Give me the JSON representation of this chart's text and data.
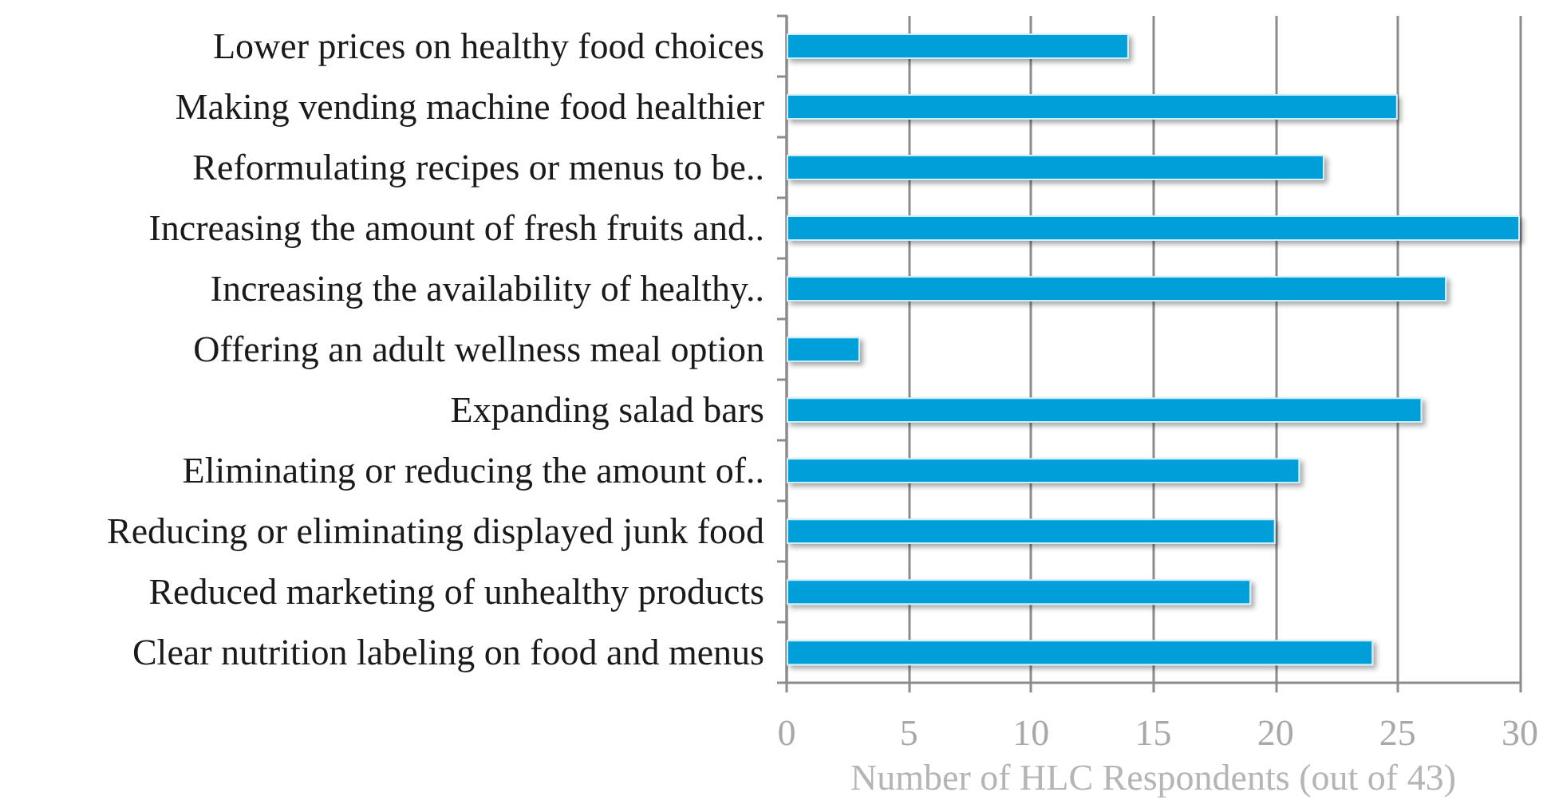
{
  "chart_data": {
    "type": "bar",
    "orientation": "horizontal",
    "categories": [
      "Lower prices on healthy food choices",
      "Making vending machine food healthier",
      "Reformulating recipes or menus to be..",
      "Increasing the amount of fresh fruits and..",
      "Increasing the availability of healthy..",
      "Offering an adult wellness meal option",
      "Expanding salad bars",
      "Eliminating or reducing the amount of..",
      "Reducing or eliminating displayed junk food",
      "Reduced marketing of unhealthy products",
      "Clear nutrition labeling on food and menus"
    ],
    "values": [
      14,
      25,
      22,
      30,
      27,
      3,
      26,
      21,
      20,
      19,
      24
    ],
    "color": "#009fda",
    "xlabel": "Number of HLC Respondents (out of 43)",
    "xlim": [
      0,
      30
    ],
    "xticks": [
      0,
      5,
      10,
      15,
      20,
      25,
      30
    ],
    "grid": "x"
  }
}
